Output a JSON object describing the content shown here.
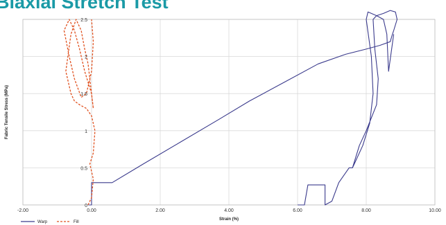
{
  "chart_data": {
    "type": "line",
    "title": "Biaxial Stretch Test",
    "xlabel": "Strain (%)",
    "ylabel": "Fabric Tensile Stress (MPa)",
    "xlim": [
      -2.0,
      10.0
    ],
    "ylim": [
      0,
      2.5
    ],
    "x_ticks": [
      "-2.00",
      "0.00",
      "2.00",
      "4.00",
      "6.00",
      "8.00",
      "10.00"
    ],
    "y_ticks": [
      "0",
      "0.5",
      "1",
      "1.5",
      "2",
      "2.5"
    ],
    "grid": true,
    "legend_position": "bottom-left",
    "colors": {
      "warp": "#3a3a8c",
      "fill": "#e0501e",
      "grid": "#d9d9d9",
      "title": "#1a9aa6"
    },
    "series": [
      {
        "name": "Warp",
        "style": "solid",
        "x": [
          6.0,
          6.2,
          6.3,
          6.8,
          6.8,
          7.0,
          7.2,
          7.5,
          7.6
        ],
        "y": [
          0.0,
          0.0,
          0.27,
          0.27,
          0.0,
          0.05,
          0.3,
          0.5,
          0.5
        ],
        "note": "lower reload segment"
      },
      {
        "name": "Warp",
        "style": "solid",
        "x": [
          -0.1,
          0.0,
          0.0,
          0.6,
          1.5,
          2.6,
          3.7,
          4.6,
          5.6,
          6.6,
          7.4,
          8.0,
          8.4,
          8.7,
          8.75,
          8.8
        ],
        "y": [
          0.0,
          0.0,
          0.3,
          0.3,
          0.55,
          0.85,
          1.15,
          1.4,
          1.65,
          1.9,
          2.03,
          2.1,
          2.15,
          2.2,
          2.28,
          2.35
        ],
        "note": "initial loading curve"
      },
      {
        "name": "Warp",
        "style": "solid",
        "x": [
          8.8,
          8.9,
          8.85,
          8.7,
          8.5,
          8.3,
          8.2,
          8.25,
          8.35,
          8.3,
          8.0,
          7.8,
          7.6,
          7.65,
          7.9,
          8.1,
          8.2,
          8.15,
          8.0,
          8.05,
          8.3,
          8.5,
          8.6,
          8.65,
          8.8
        ],
        "y": [
          2.35,
          2.5,
          2.6,
          2.62,
          2.58,
          2.55,
          2.5,
          2.1,
          1.7,
          1.35,
          1.0,
          0.8,
          0.5,
          0.55,
          0.8,
          1.1,
          1.5,
          2.0,
          2.5,
          2.6,
          2.55,
          2.5,
          2.3,
          1.8,
          2.3
        ],
        "note": "cyclic hysteresis loops"
      },
      {
        "name": "Fill",
        "style": "dashed",
        "x": [
          -0.1,
          0.0,
          0.05,
          -0.05,
          0.05,
          0.1,
          0.0,
          -0.15,
          -0.35,
          -0.5,
          -0.6,
          -0.75,
          -0.6,
          -0.45,
          -0.3,
          -0.2,
          -0.1,
          0.0,
          0.05,
          0.0,
          -0.2,
          -0.35,
          -0.5,
          -0.65,
          -0.8,
          -0.65,
          -0.5,
          -0.3,
          -0.15,
          0.0,
          0.05,
          0.0
        ],
        "y": [
          0.0,
          0.1,
          0.35,
          0.55,
          0.7,
          1.0,
          1.2,
          1.3,
          1.35,
          1.4,
          1.5,
          1.8,
          2.3,
          2.5,
          2.35,
          2.1,
          1.9,
          1.5,
          1.3,
          1.5,
          1.8,
          2.1,
          2.35,
          2.5,
          2.35,
          2.0,
          1.7,
          1.45,
          1.5,
          1.8,
          2.2,
          2.5
        ]
      }
    ],
    "legend": [
      {
        "label": "Warp",
        "style": "solid"
      },
      {
        "label": "Fill",
        "style": "dashed"
      }
    ]
  }
}
